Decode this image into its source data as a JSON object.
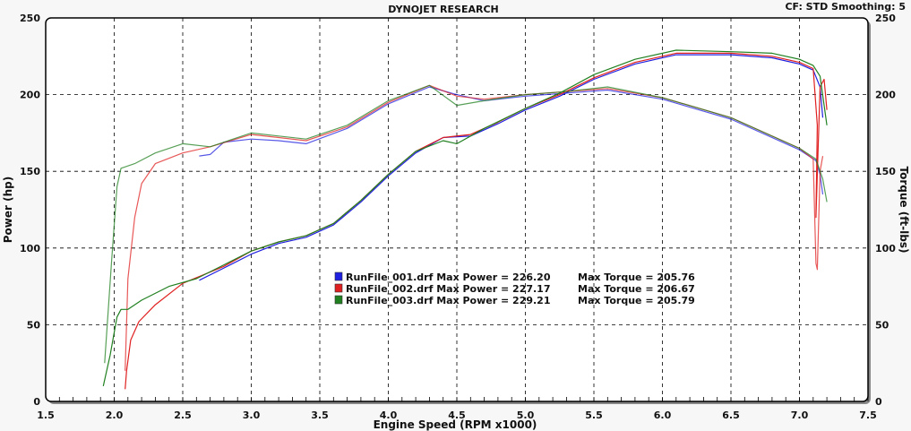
{
  "chart_data": {
    "type": "line",
    "title": "DYNOJET RESEARCH",
    "header_right": "CF: STD  Smoothing: 5",
    "xlabel": "Engine Speed (RPM x1000)",
    "ylabel": "Power (hp)",
    "ylabel_right": "Torque (ft-lbs)",
    "xlim": [
      1.5,
      7.5
    ],
    "ylim": [
      0,
      250
    ],
    "xticks": [
      "1.5",
      "2.0",
      "2.5",
      "3.0",
      "3.5",
      "4.0",
      "4.5",
      "5.0",
      "5.5",
      "6.0",
      "6.5",
      "7.0",
      "7.5"
    ],
    "yticks": [
      "0",
      "50",
      "100",
      "150",
      "200",
      "250"
    ],
    "grid": true,
    "legend": [
      {
        "file": "RunFile_001.drf",
        "power_text": "Max Power = 226.20",
        "torque_text": "Max Torque = 205.76",
        "color": "#2020e0"
      },
      {
        "file": "RunFile_002.drf",
        "power_text": "Max Power = 227.17",
        "torque_text": "Max Torque = 206.67",
        "color": "#e02020"
      },
      {
        "file": "RunFile_003.drf",
        "power_text": "Max Power = 229.21",
        "torque_text": "Max Torque = 205.79",
        "color": "#208020"
      }
    ],
    "series": [
      {
        "name": "RunFile_001.drf",
        "color": "#2020e0",
        "power": [
          [
            2.62,
            79
          ],
          [
            2.8,
            87
          ],
          [
            3.0,
            96
          ],
          [
            3.2,
            103
          ],
          [
            3.4,
            107
          ],
          [
            3.6,
            115
          ],
          [
            3.8,
            130
          ],
          [
            4.0,
            147
          ],
          [
            4.2,
            162
          ],
          [
            4.4,
            172
          ],
          [
            4.6,
            173
          ],
          [
            4.8,
            181
          ],
          [
            5.0,
            190
          ],
          [
            5.25,
            199
          ],
          [
            5.5,
            210
          ],
          [
            5.8,
            220
          ],
          [
            6.1,
            226
          ],
          [
            6.5,
            226
          ],
          [
            6.8,
            224
          ],
          [
            7.0,
            220
          ],
          [
            7.1,
            216
          ],
          [
            7.15,
            205
          ],
          [
            7.17,
            185
          ]
        ],
        "torque": [
          [
            2.62,
            160
          ],
          [
            2.7,
            161
          ],
          [
            2.8,
            169
          ],
          [
            3.0,
            171
          ],
          [
            3.2,
            170
          ],
          [
            3.4,
            168
          ],
          [
            3.7,
            178
          ],
          [
            4.0,
            194
          ],
          [
            4.3,
            205
          ],
          [
            4.5,
            200
          ],
          [
            4.7,
            196
          ],
          [
            5.0,
            199
          ],
          [
            5.3,
            201
          ],
          [
            5.6,
            203
          ],
          [
            6.0,
            197
          ],
          [
            6.5,
            184
          ],
          [
            7.0,
            164
          ],
          [
            7.12,
            157
          ],
          [
            7.15,
            148
          ],
          [
            7.17,
            135
          ]
        ]
      },
      {
        "name": "RunFile_002.drf",
        "color": "#e02020",
        "power": [
          [
            2.08,
            8
          ],
          [
            2.09,
            20
          ],
          [
            2.12,
            40
          ],
          [
            2.18,
            52
          ],
          [
            2.3,
            63
          ],
          [
            2.5,
            77
          ],
          [
            2.8,
            88
          ],
          [
            3.0,
            98
          ],
          [
            3.2,
            104
          ],
          [
            3.4,
            108
          ],
          [
            3.6,
            116
          ],
          [
            3.8,
            131
          ],
          [
            4.0,
            148
          ],
          [
            4.2,
            163
          ],
          [
            4.4,
            172
          ],
          [
            4.6,
            174
          ],
          [
            4.8,
            182
          ],
          [
            5.0,
            191
          ],
          [
            5.25,
            200
          ],
          [
            5.5,
            211
          ],
          [
            5.8,
            221
          ],
          [
            6.1,
            227
          ],
          [
            6.5,
            227
          ],
          [
            6.8,
            225
          ],
          [
            7.0,
            221
          ],
          [
            7.1,
            217
          ],
          [
            7.13,
            180
          ],
          [
            7.12,
            120
          ],
          [
            7.15,
            205
          ],
          [
            7.18,
            210
          ],
          [
            7.2,
            190
          ]
        ],
        "torque": [
          [
            2.08,
            20
          ],
          [
            2.1,
            80
          ],
          [
            2.15,
            120
          ],
          [
            2.2,
            142
          ],
          [
            2.3,
            155
          ],
          [
            2.5,
            162
          ],
          [
            2.7,
            166
          ],
          [
            3.0,
            174
          ],
          [
            3.2,
            172
          ],
          [
            3.4,
            170
          ],
          [
            3.7,
            179
          ],
          [
            4.0,
            195
          ],
          [
            4.3,
            206
          ],
          [
            4.5,
            199
          ],
          [
            4.7,
            197
          ],
          [
            5.0,
            200
          ],
          [
            5.3,
            202
          ],
          [
            5.6,
            204
          ],
          [
            6.0,
            198
          ],
          [
            6.5,
            185
          ],
          [
            7.0,
            165
          ],
          [
            7.1,
            158
          ],
          [
            7.12,
            90
          ],
          [
            7.13,
            86
          ],
          [
            7.15,
            150
          ],
          [
            7.17,
            160
          ]
        ]
      },
      {
        "name": "RunFile_003.drf",
        "color": "#208020",
        "power": [
          [
            1.92,
            10
          ],
          [
            1.97,
            30
          ],
          [
            2.02,
            55
          ],
          [
            2.05,
            60
          ],
          [
            2.1,
            60
          ],
          [
            2.2,
            66
          ],
          [
            2.4,
            75
          ],
          [
            2.6,
            80
          ],
          [
            2.8,
            89
          ],
          [
            3.0,
            98
          ],
          [
            3.2,
            104
          ],
          [
            3.4,
            108
          ],
          [
            3.6,
            116
          ],
          [
            3.8,
            131
          ],
          [
            4.0,
            148
          ],
          [
            4.2,
            163
          ],
          [
            4.4,
            170
          ],
          [
            4.5,
            168
          ],
          [
            4.7,
            178
          ],
          [
            5.0,
            191
          ],
          [
            5.25,
            201
          ],
          [
            5.5,
            213
          ],
          [
            5.8,
            223
          ],
          [
            6.1,
            229
          ],
          [
            6.5,
            228
          ],
          [
            6.8,
            227
          ],
          [
            7.0,
            223
          ],
          [
            7.1,
            219
          ],
          [
            7.15,
            212
          ],
          [
            7.2,
            180
          ]
        ],
        "torque": [
          [
            1.93,
            25
          ],
          [
            1.98,
            90
          ],
          [
            2.02,
            140
          ],
          [
            2.05,
            152
          ],
          [
            2.15,
            155
          ],
          [
            2.3,
            162
          ],
          [
            2.5,
            168
          ],
          [
            2.7,
            166
          ],
          [
            3.0,
            175
          ],
          [
            3.2,
            173
          ],
          [
            3.4,
            171
          ],
          [
            3.7,
            180
          ],
          [
            4.0,
            196
          ],
          [
            4.3,
            206
          ],
          [
            4.5,
            193
          ],
          [
            4.7,
            196
          ],
          [
            5.0,
            200
          ],
          [
            5.3,
            202
          ],
          [
            5.6,
            205
          ],
          [
            6.0,
            198
          ],
          [
            6.5,
            185
          ],
          [
            7.0,
            165
          ],
          [
            7.12,
            158
          ],
          [
            7.17,
            145
          ],
          [
            7.2,
            130
          ]
        ]
      }
    ]
  }
}
